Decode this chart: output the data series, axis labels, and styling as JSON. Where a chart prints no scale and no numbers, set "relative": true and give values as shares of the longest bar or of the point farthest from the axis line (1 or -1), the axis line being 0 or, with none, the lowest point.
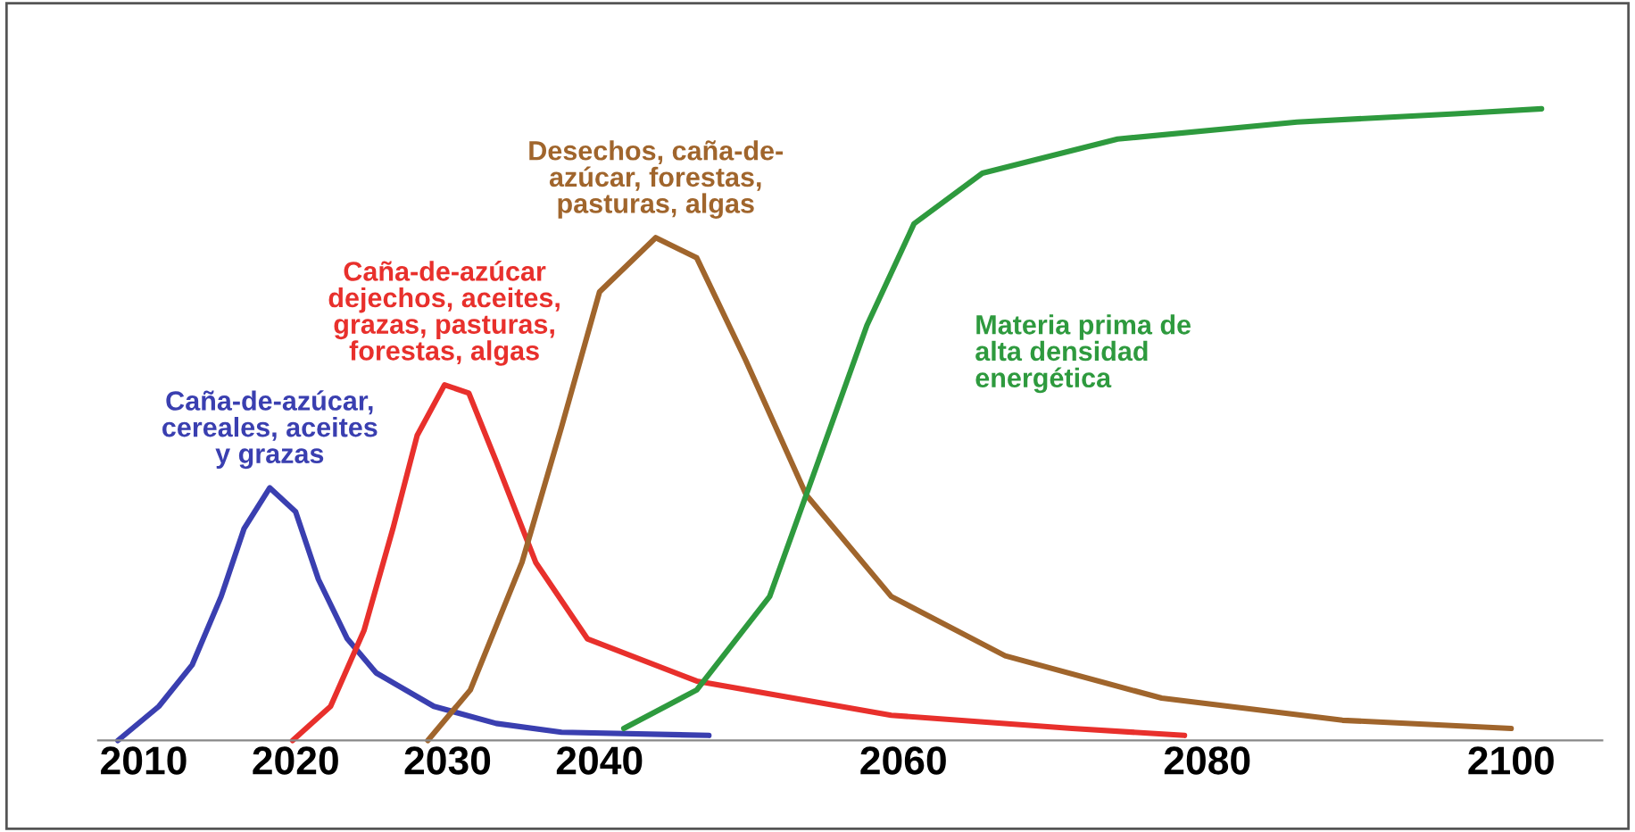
{
  "chart_data": {
    "type": "line",
    "relative": true,
    "xlim": [
      2007,
      2106
    ],
    "xticks": [
      2010,
      2020,
      2030,
      2040,
      2060,
      2080,
      2100
    ],
    "grid": false,
    "legend": false,
    "marker": "none",
    "line_style": "solid",
    "series": [
      {
        "name": "Caña-de-azúcar,\ncereales, aceites\ny grazas",
        "color": "#3a3fb0",
        "x": [
          2008.3,
          2011.0,
          2013.2,
          2015.1,
          2016.6,
          2018.3,
          2020,
          2021.5,
          2023.4,
          2025.3,
          2029.1,
          2033.2,
          2037.5,
          2047.2
        ],
        "values": [
          0,
          0.054,
          0.12,
          0.228,
          0.335,
          0.4,
          0.362,
          0.255,
          0.161,
          0.107,
          0.054,
          0.027,
          0.013,
          0.008
        ]
      },
      {
        "name": "Caña-de-azúcar\ndejechos, aceites,\ngrazas, pasturas,\nforestas, algas",
        "color": "#e8302c",
        "x": [
          2019.8,
          2022.3,
          2024.5,
          2026.4,
          2028.0,
          2029.8,
          2031.4,
          2033.2,
          2035.8,
          2039.2,
          2046.4,
          2059.2,
          2071.1,
          2078.5
        ],
        "values": [
          0,
          0.054,
          0.174,
          0.335,
          0.483,
          0.563,
          0.55,
          0.442,
          0.282,
          0.161,
          0.094,
          0.04,
          0.019,
          0.008
        ]
      },
      {
        "name": "Desechos, caña-de-\nazúcar, forestas,\npasturas, algas",
        "color": "#a0652c",
        "x": [
          2028.7,
          2031.5,
          2034.9,
          2037.5,
          2040,
          2043.7,
          2046.4,
          2049.6,
          2053.6,
          2059.2,
          2066.7,
          2077.0,
          2088.9,
          2100
        ],
        "values": [
          0,
          0.08,
          0.282,
          0.496,
          0.71,
          0.796,
          0.764,
          0.603,
          0.389,
          0.228,
          0.134,
          0.067,
          0.032,
          0.019
        ]
      },
      {
        "name": "Materia prima de\nalta densidad\nenergética",
        "color": "#2e9a3e",
        "x": [
          2041.6,
          2046.4,
          2051.2,
          2054.4,
          2057.6,
          2060.7,
          2065.2,
          2074.1,
          2085.9,
          2096.3,
          2102
        ],
        "values": [
          0.019,
          0.08,
          0.228,
          0.442,
          0.657,
          0.818,
          0.898,
          0.952,
          0.979,
          0.992,
          1
        ]
      }
    ]
  }
}
